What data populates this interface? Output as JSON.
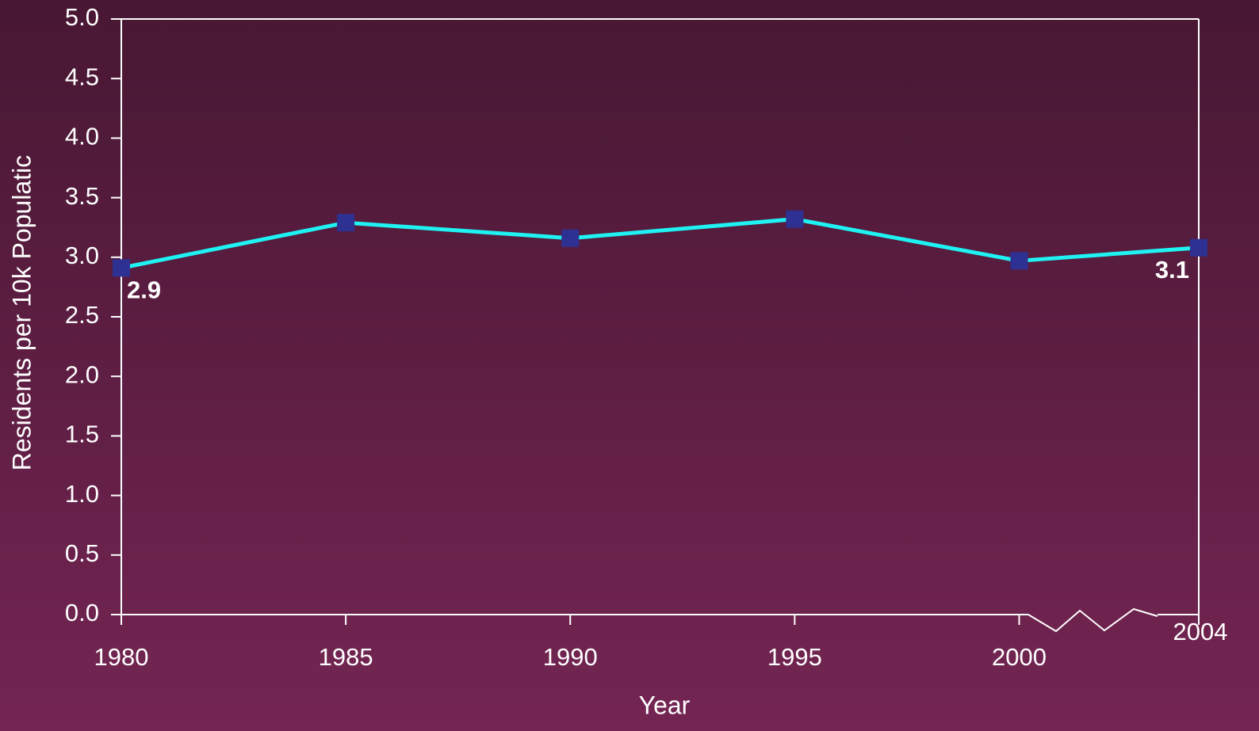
{
  "chart_data": {
    "type": "line",
    "x_label": "Year",
    "y_label": "Residents per 10k Populatic",
    "x": [
      1980,
      1985,
      1990,
      1995,
      2000,
      2004
    ],
    "series": [
      {
        "name": "Residents",
        "color": "#1ff2f2",
        "marker_color": "#2e3192",
        "values": [
          2.91,
          3.29,
          3.16,
          3.32,
          2.97,
          3.08
        ],
        "value_labels": [
          "2.9",
          null,
          null,
          null,
          null,
          "3.1"
        ]
      }
    ],
    "xlim": [
      1980,
      2004
    ],
    "xticks": [
      1980,
      1985,
      1990,
      1995,
      2000,
      2004
    ],
    "ylim": [
      0,
      5
    ],
    "yticks": [
      {
        "value": 0,
        "label": "0.0"
      },
      0.5,
      {
        "value": 1,
        "label": "1.0"
      },
      1.5,
      {
        "value": 2,
        "label": "2.0"
      },
      2.5,
      {
        "value": 3,
        "label": "3.0"
      },
      3.5,
      {
        "value": 4,
        "label": "4.0"
      },
      4.5,
      {
        "value": 5,
        "label": "5.0"
      }
    ],
    "grid": false
  }
}
